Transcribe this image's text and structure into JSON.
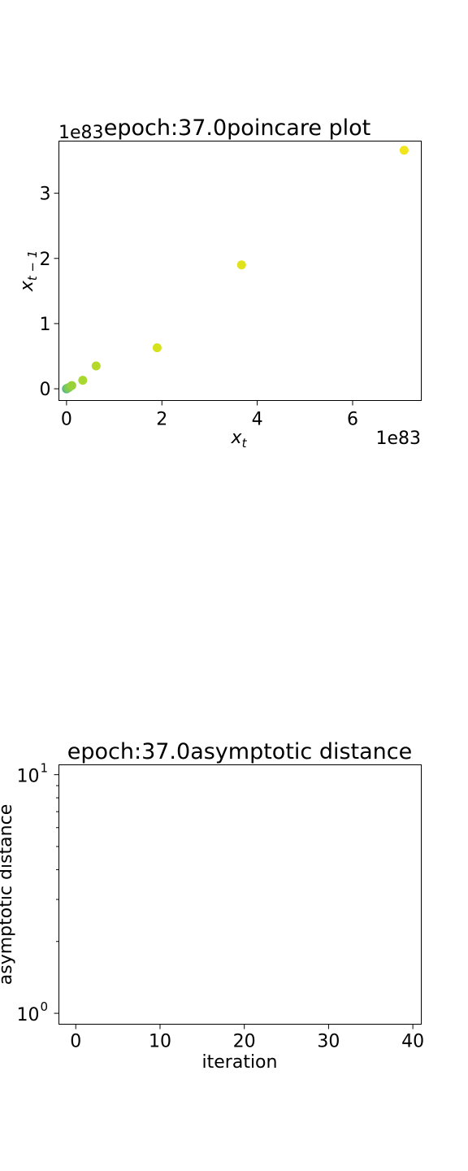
{
  "chart_data": [
    {
      "type": "scatter",
      "title": "epoch:37.0poincare plot",
      "xlabel": "x_t",
      "ylabel": "x_{t-1}",
      "x_offset_text": "1e83",
      "y_offset_text": "1e83",
      "xlim": [
        -1.6e+82,
        7.44e+83
      ],
      "ylim": [
        -1.8e+82,
        3.8e+83
      ],
      "xticks": [
        {
          "v": 0,
          "label": "0"
        },
        {
          "v": 2e+83,
          "label": "2"
        },
        {
          "v": 4e+83,
          "label": "4"
        },
        {
          "v": 6e+83,
          "label": "6"
        }
      ],
      "yticks": [
        {
          "v": 0,
          "label": "0"
        },
        {
          "v": 1e+83,
          "label": "1"
        },
        {
          "v": 2e+83,
          "label": "2"
        },
        {
          "v": 3e+83,
          "label": "3"
        }
      ],
      "grid": false,
      "colormap": "viridis",
      "points": [
        {
          "x": 0.0,
          "y": 0.0,
          "color": "#3b8b8c"
        },
        {
          "x": 3e+80,
          "y": 1e+80,
          "color": "#46a386"
        },
        {
          "x": 8e+80,
          "y": 3e+80,
          "color": "#5ab97d"
        },
        {
          "x": 2e+81,
          "y": 8e+80,
          "color": "#6ec26f"
        },
        {
          "x": 5e+81,
          "y": 2e+81,
          "color": "#7fcd52"
        },
        {
          "x": 1.1e+82,
          "y": 5e+81,
          "color": "#99d13b"
        },
        {
          "x": 3.4e+82,
          "y": 1.3e+82,
          "color": "#a8d82f"
        },
        {
          "x": 6.2e+82,
          "y": 3.5e+82,
          "color": "#b5d82a"
        },
        {
          "x": 1.9e+83,
          "y": 6.3e+82,
          "color": "#d5e21a"
        },
        {
          "x": 3.67e+83,
          "y": 1.9e+83,
          "color": "#e0e21c"
        },
        {
          "x": 7.08e+83,
          "y": 3.66e+83,
          "color": "#f1e51d"
        }
      ]
    },
    {
      "type": "line",
      "title": "epoch:37.0asymptotic distance",
      "xlabel": "iteration",
      "ylabel": "asymptotic distance",
      "xlim": [
        -2,
        41
      ],
      "ylim": [
        0.9,
        11
      ],
      "yscale": "log",
      "xticks": [
        {
          "v": 0,
          "label": "0"
        },
        {
          "v": 10,
          "label": "10"
        },
        {
          "v": 20,
          "label": "20"
        },
        {
          "v": 30,
          "label": "30"
        },
        {
          "v": 40,
          "label": "40"
        }
      ],
      "yticks_major": [
        {
          "v": 1,
          "base": "10",
          "exp": "0"
        },
        {
          "v": 10,
          "base": "10",
          "exp": "1"
        }
      ],
      "yticks_minor": [
        2,
        3,
        4,
        5,
        6,
        7,
        8,
        9
      ],
      "grid": false,
      "series": []
    }
  ]
}
